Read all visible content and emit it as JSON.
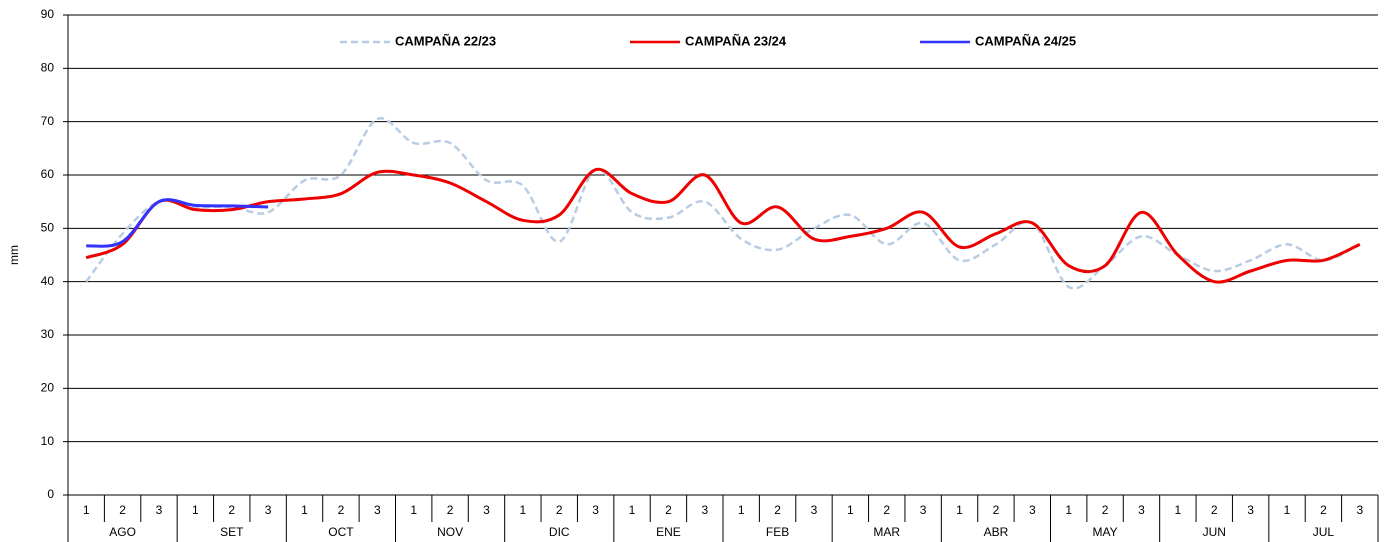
{
  "chart_data": {
    "type": "line",
    "y_label": "mm",
    "categories": [
      "1",
      "2",
      "3",
      "1",
      "2",
      "3",
      "1",
      "2",
      "3",
      "1",
      "2",
      "3",
      "1",
      "2",
      "3",
      "1",
      "2",
      "3",
      "1",
      "2",
      "3",
      "1",
      "2",
      "3",
      "1",
      "2",
      "3",
      "1",
      "2",
      "3",
      "1",
      "2",
      "3",
      "1",
      "2",
      "3"
    ],
    "groups": [
      "AGO",
      "SET",
      "OCT",
      "NOV",
      "DIC",
      "ENE",
      "FEB",
      "MAR",
      "ABR",
      "MAY",
      "JUN",
      "JUL"
    ],
    "ylim": [
      0,
      90
    ],
    "yticks": [
      0,
      10,
      20,
      30,
      40,
      50,
      60,
      70,
      80,
      90
    ],
    "grid": true,
    "legend": "top",
    "series": [
      {
        "name": "CAMPAÑA 22/23",
        "color": "#b8cce4",
        "dashed": true,
        "values": [
          40,
          49,
          55,
          54,
          54,
          53,
          59,
          60,
          70.5,
          66,
          66,
          59,
          58,
          47.5,
          61,
          53,
          52,
          55,
          48,
          46,
          50,
          52.5,
          47,
          51,
          44,
          47,
          51,
          39,
          43,
          48.5,
          45,
          42,
          44,
          47,
          44,
          47
        ]
      },
      {
        "name": "CAMPAÑA 23/24",
        "color": "#ee0000",
        "dashed": false,
        "values": [
          44.5,
          47,
          55,
          53.5,
          53.5,
          55,
          55.5,
          56.5,
          60.5,
          60,
          58.5,
          55,
          51.5,
          52.5,
          61,
          56.5,
          55,
          60,
          51,
          54,
          48,
          48.5,
          50,
          53,
          46.5,
          49,
          51,
          43,
          43,
          53,
          45,
          40,
          42,
          44,
          44,
          47
        ]
      },
      {
        "name": "CAMPAÑA 24/25",
        "color": "#3333ff",
        "dashed": false,
        "values": [
          46.7,
          47.5,
          55,
          54.3,
          54.2,
          54,
          null,
          null,
          null,
          null,
          null,
          null,
          null,
          null,
          null,
          null,
          null,
          null,
          null,
          null,
          null,
          null,
          null,
          null,
          null,
          null,
          null,
          null,
          null,
          null,
          null,
          null,
          null,
          null,
          null,
          null
        ]
      }
    ]
  }
}
